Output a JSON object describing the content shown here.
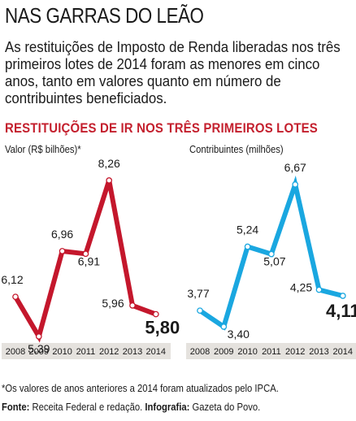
{
  "page": {
    "title": "NAS GARRAS DO LEÃO",
    "intro": "As restituições de Imposto de Renda liberadas nos três primeiros lotes de 2014 foram as menores em cinco anos, tanto em valores quanto em número de contribuintes beneficiados.",
    "heading": "RESTITUIÇÕES DE IR NOS TRÊS PRIMEIROS LOTES",
    "note": "*Os valores de anos anteriores a 2014 foram atualizados pelo IPCA.",
    "source_label": "Fonte:",
    "source_text": "Receita Federal e redação.",
    "infographic_label": "Infografia:",
    "infographic_text": "Gazeta do Povo."
  },
  "chart_data": [
    {
      "type": "line",
      "ylabel": "Valor (R$ bilhões)*",
      "x": [
        "2008",
        "2009",
        "2010",
        "2011",
        "2012",
        "2013",
        "2014"
      ],
      "values": [
        6.12,
        5.39,
        6.96,
        6.91,
        8.26,
        5.96,
        5.8
      ],
      "value_labels": [
        "6,12",
        "5,39",
        "6,96",
        "6,91",
        "8,26",
        "5,96",
        "5,80"
      ],
      "color": "#c4172c",
      "highlight_last": true,
      "grid": false
    },
    {
      "type": "line",
      "ylabel": "Contribuintes (milhões)",
      "x": [
        "2008",
        "2009",
        "2010",
        "2011",
        "2012",
        "2013",
        "2014"
      ],
      "values": [
        3.77,
        3.4,
        5.24,
        5.07,
        6.67,
        4.25,
        4.11
      ],
      "value_labels": [
        "3,77",
        "3,40",
        "5,24",
        "5,07",
        "6,67",
        "4,25",
        "4,11"
      ],
      "color": "#1aa7e0",
      "highlight_last": true,
      "grid": false
    }
  ],
  "colors": {
    "heading": "#c4202e",
    "axis_band": "#e5e2de"
  }
}
